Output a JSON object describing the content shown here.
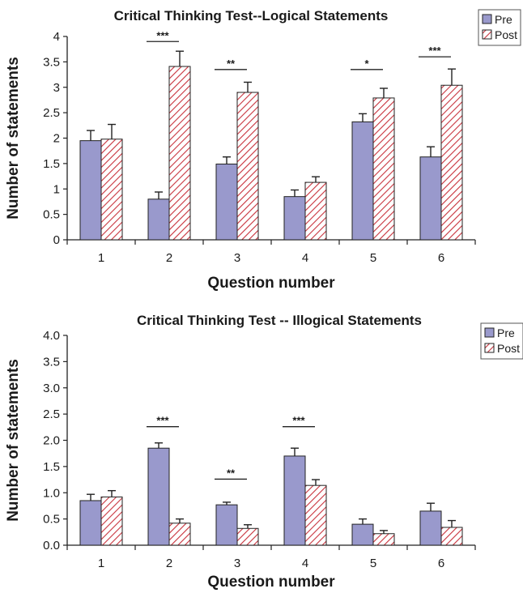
{
  "chart_data": [
    {
      "type": "bar",
      "title": "Critical Thinking Test--Logical Statements",
      "xlabel": "Question number",
      "ylabel": "Number of statements",
      "categories": [
        "1",
        "2",
        "3",
        "4",
        "5",
        "6"
      ],
      "ylim": [
        0,
        4
      ],
      "yticks": [
        "0",
        "0.5",
        "1",
        "1.5",
        "2",
        "2.5",
        "3",
        "3.5",
        "4"
      ],
      "series": [
        {
          "name": "Pre",
          "color": "#9999cc",
          "pattern": "solid",
          "values": [
            1.95,
            0.8,
            1.49,
            0.85,
            2.32,
            1.63
          ],
          "errors": [
            0.2,
            0.14,
            0.14,
            0.13,
            0.16,
            0.2
          ]
        },
        {
          "name": "Post",
          "color": "#c8323c",
          "pattern": "diagonal-hatch",
          "values": [
            1.98,
            3.41,
            2.9,
            1.13,
            2.79,
            3.04
          ],
          "errors": [
            0.29,
            0.3,
            0.2,
            0.11,
            0.19,
            0.32
          ]
        }
      ],
      "significance": [
        {
          "category": "2",
          "label": "***",
          "y": 3.9
        },
        {
          "category": "3",
          "label": "**",
          "y": 3.35
        },
        {
          "category": "5",
          "label": "*",
          "y": 3.35
        },
        {
          "category": "6",
          "label": "***",
          "y": 3.6
        }
      ],
      "legend_position": "top-right",
      "grid": false
    },
    {
      "type": "bar",
      "title": "Critical Thinking Test -- Illogical Statements",
      "xlabel": "Question number",
      "ylabel": "Number of statements",
      "categories": [
        "1",
        "2",
        "3",
        "4",
        "5",
        "6"
      ],
      "ylim": [
        0,
        4
      ],
      "yticks": [
        "0.0",
        "0.5",
        "1.0",
        "1.5",
        "2.0",
        "2.5",
        "3.0",
        "3.5",
        "4.0"
      ],
      "series": [
        {
          "name": "Pre",
          "color": "#9999cc",
          "pattern": "solid",
          "values": [
            0.85,
            1.85,
            0.77,
            1.7,
            0.4,
            0.65
          ],
          "errors": [
            0.12,
            0.1,
            0.05,
            0.15,
            0.1,
            0.15
          ]
        },
        {
          "name": "Post",
          "color": "#c8323c",
          "pattern": "diagonal-hatch",
          "values": [
            0.92,
            0.42,
            0.32,
            1.14,
            0.22,
            0.34
          ],
          "errors": [
            0.12,
            0.08,
            0.07,
            0.11,
            0.06,
            0.13
          ]
        }
      ],
      "significance": [
        {
          "category": "2",
          "label": "***",
          "y": 2.26
        },
        {
          "category": "3",
          "label": "**",
          "y": 1.26
        },
        {
          "category": "4",
          "label": "***",
          "y": 2.26
        }
      ],
      "legend_position": "top-right",
      "grid": false
    }
  ]
}
